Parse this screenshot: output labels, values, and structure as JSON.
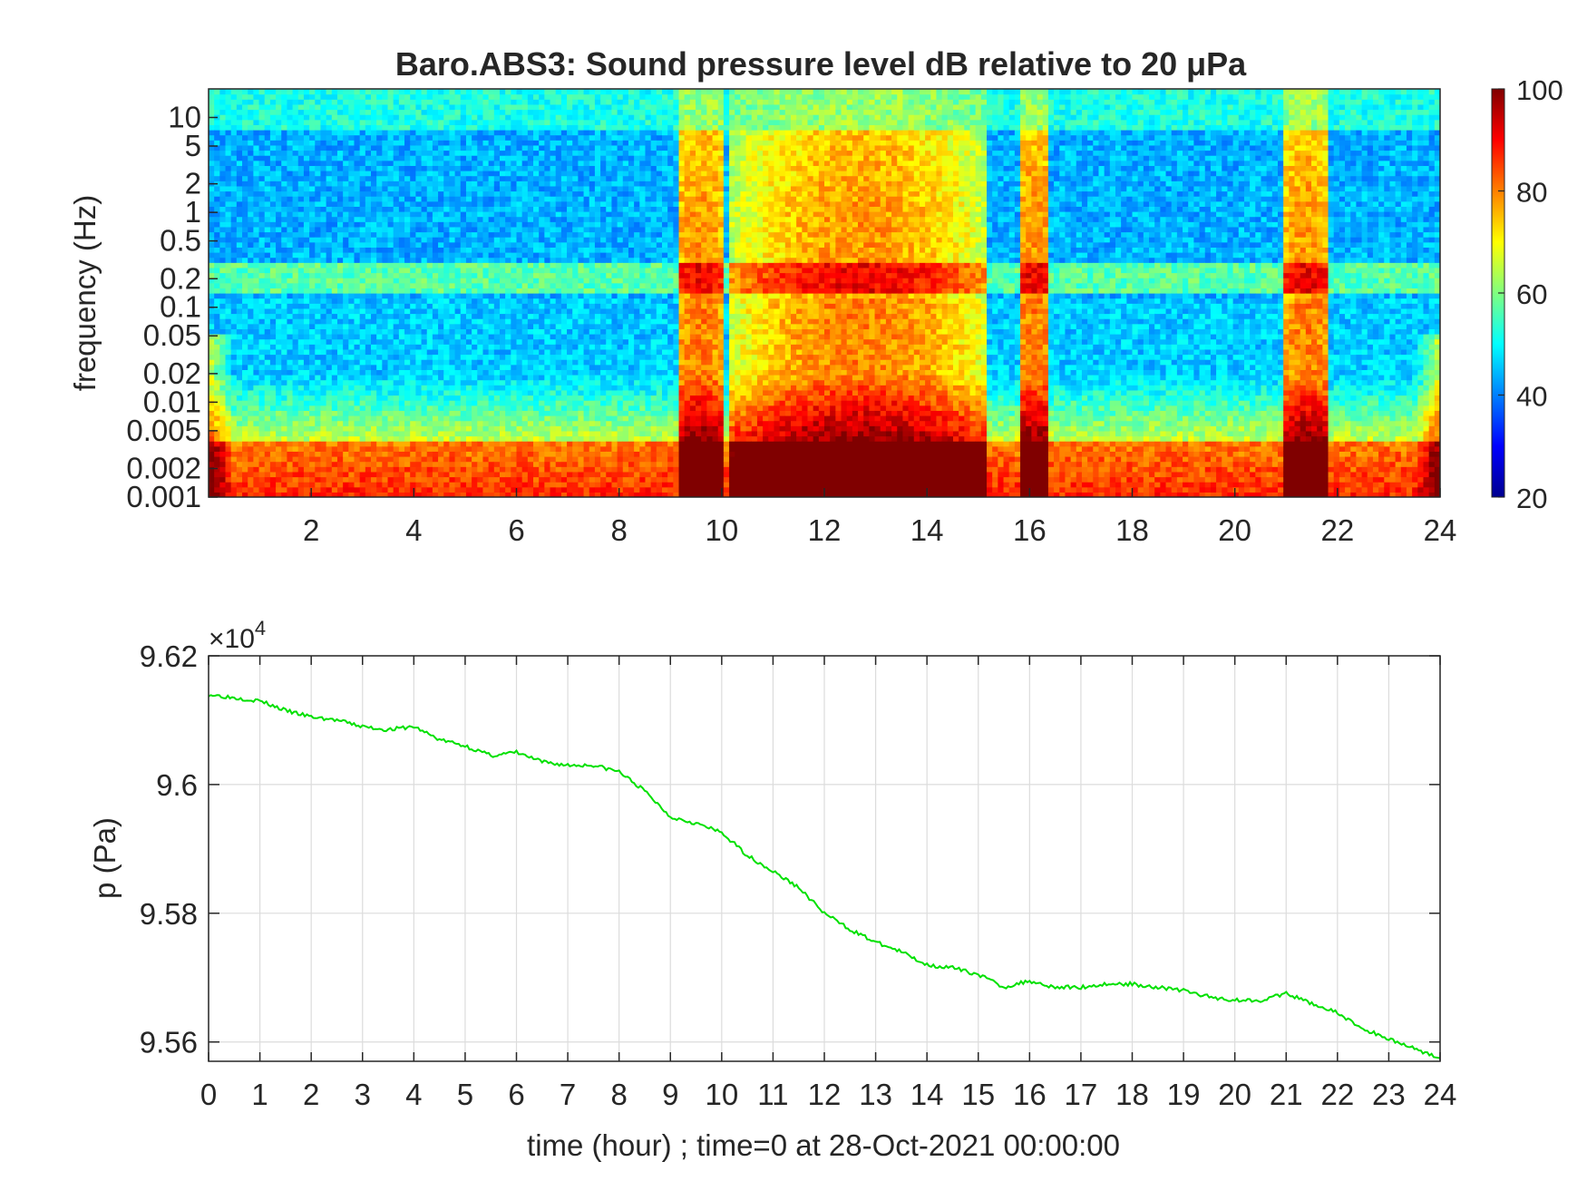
{
  "chart_data": [
    {
      "type": "heatmap",
      "title": "Baro.ABS3: Sound pressure level dB relative to 20 μPa",
      "xlabel": "",
      "ylabel": "frequency (Hz)",
      "y_scale": "log",
      "xlim": [
        0,
        24
      ],
      "ylim": [
        0.001,
        20
      ],
      "x_ticks": [
        2,
        4,
        6,
        8,
        10,
        12,
        14,
        16,
        18,
        20,
        22,
        24
      ],
      "y_ticks": [
        "10",
        "5",
        "2",
        "1",
        "0.5",
        "0.2",
        "0.1",
        "0.05",
        "0.02",
        "0.01",
        "0.005",
        "0.002",
        "0.001"
      ],
      "y_tick_values": [
        10,
        5,
        2,
        1,
        0.5,
        0.2,
        0.1,
        0.05,
        0.02,
        0.01,
        0.005,
        0.002,
        0.001
      ],
      "colormap": "jet",
      "clim": [
        20,
        100
      ],
      "colorbar_ticks": [
        100,
        80,
        60,
        40,
        20
      ],
      "colorbar_location": "right",
      "energetic_periods_hours": [
        [
          9.2,
          10.0
        ],
        [
          10.2,
          15.2
        ],
        [
          15.8,
          16.4
        ],
        [
          21.0,
          21.8
        ]
      ],
      "quiet_periods_hours": [
        [
          0.5,
          9.0
        ],
        [
          16.5,
          21.0
        ],
        [
          22.0,
          23.5
        ]
      ]
    },
    {
      "type": "line",
      "xlabel": "time (hour) ; time=0 at 28-Oct-2021 00:00:00",
      "ylabel": "p (Pa)",
      "xlim": [
        0,
        24
      ],
      "ylim": [
        95570,
        96200
      ],
      "x_ticks": [
        "0",
        "1",
        "2",
        "3",
        "4",
        "5",
        "6",
        "7",
        "8",
        "9",
        "10",
        "11",
        "12",
        "13",
        "14",
        "15",
        "16",
        "17",
        "18",
        "19",
        "20",
        "21",
        "22",
        "23",
        "24"
      ],
      "y_ticks": [
        "9.62",
        "9.6",
        "9.58",
        "9.56"
      ],
      "y_tick_values": [
        96200,
        96000,
        95800,
        95600
      ],
      "y_multiplier": "×10",
      "y_multiplier_exp": "4",
      "grid": true,
      "line_color": "#00e000",
      "series": [
        {
          "x": [
            0,
            0.5,
            1,
            1.5,
            2,
            2.5,
            3,
            3.5,
            4,
            4.5,
            5,
            5.5,
            6,
            6.5,
            7,
            7.5,
            8,
            8.5,
            9,
            9.5,
            10,
            10.5,
            11,
            11.5,
            12,
            12.5,
            13,
            13.5,
            14,
            14.5,
            15,
            15.5,
            16,
            16.5,
            17,
            17.5,
            18,
            18.5,
            19,
            19.5,
            20,
            20.5,
            21,
            21.5,
            22,
            22.5,
            23,
            23.5,
            24
          ],
          "values": [
            96140,
            96135,
            96130,
            96115,
            96105,
            96100,
            96090,
            96085,
            96090,
            96070,
            96060,
            96045,
            96050,
            96035,
            96030,
            96030,
            96020,
            95990,
            95950,
            95940,
            95925,
            95890,
            95865,
            95840,
            95800,
            95775,
            95755,
            95740,
            95720,
            95715,
            95705,
            95685,
            95695,
            95685,
            95685,
            95690,
            95690,
            95685,
            95680,
            95670,
            95665,
            95665,
            95675,
            95660,
            95645,
            95620,
            95605,
            95590,
            95575
          ]
        }
      ]
    }
  ]
}
